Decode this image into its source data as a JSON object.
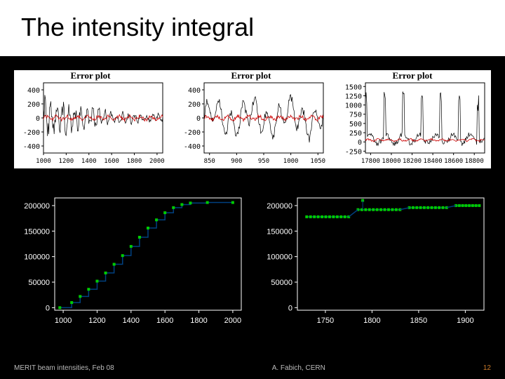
{
  "slide": {
    "title": "The intensity integral",
    "background": "#000000",
    "title_bg": "#ffffff",
    "title_color": "#000000",
    "title_fontsize": 36
  },
  "top_row": {
    "title_text": "Error plot",
    "title_fontsize": 13,
    "title_fontweight": "bold",
    "axis_font": "monospace",
    "axis_fontsize": 11,
    "series_main_color": "#000000",
    "series_overlay_color": "#cc0000",
    "background": "#ffffff",
    "panels": [
      {
        "yticks": [
          -400,
          -200,
          0,
          200,
          400
        ],
        "xticks": [
          1000,
          1200,
          1400,
          1600,
          1800,
          2000
        ],
        "xtick_labels_compressed": "1000 1200 1400 1600 1800 2000",
        "xlim": [
          1000,
          2050
        ],
        "ylim": [
          -500,
          500
        ],
        "black_series_decaying_noise": true,
        "red_series_flat_at": 0
      },
      {
        "yticks": [
          -400,
          -200,
          0,
          200,
          400
        ],
        "xticks": [
          850,
          900,
          950,
          1000,
          1050
        ],
        "xtick_labels_compressed": "850 900 950 1000 1050",
        "xlim": [
          840,
          1060
        ],
        "ylim": [
          -500,
          500
        ],
        "black_series_quasi_periodic": true,
        "red_series_flat_at": 0
      },
      {
        "yticks": [
          -250,
          0,
          250,
          500,
          750,
          1000,
          1250,
          1500
        ],
        "xticks": [
          17800,
          18000,
          18200,
          18400,
          18600,
          18800
        ],
        "xtick_labels_compressed": "17800 18000 18200 18400 18600 18800",
        "xlim": [
          17750,
          18900
        ],
        "ylim": [
          -300,
          1600
        ],
        "black_series_spikes": true,
        "red_series_flat_at": 50
      }
    ]
  },
  "bottom_row": {
    "background": "#000000",
    "axis_color": "#ffffff",
    "label_color": "#ffffff",
    "label_fontsize": 11,
    "line_color": "#004080",
    "marker_color": "#00cc00",
    "marker_size": 4,
    "panels": [
      {
        "xticks": [
          1000,
          1200,
          1400,
          1600,
          1800,
          2000
        ],
        "yticks": [
          0,
          50000,
          100000,
          150000,
          200000
        ],
        "xlim": [
          950,
          2050
        ],
        "ylim": [
          -5000,
          215000
        ],
        "type": "step_staircase",
        "step_points": [
          [
            980,
            0
          ],
          [
            1050,
            10000
          ],
          [
            1100,
            22000
          ],
          [
            1150,
            36000
          ],
          [
            1200,
            52000
          ],
          [
            1250,
            68000
          ],
          [
            1300,
            85000
          ],
          [
            1350,
            102000
          ],
          [
            1400,
            120000
          ],
          [
            1450,
            138000
          ],
          [
            1500,
            156000
          ],
          [
            1550,
            172000
          ],
          [
            1600,
            186000
          ],
          [
            1650,
            196000
          ],
          [
            1700,
            202000
          ],
          [
            1750,
            205000
          ],
          [
            1850,
            206000
          ],
          [
            2000,
            206000
          ]
        ]
      },
      {
        "xticks": [
          1750,
          1800,
          1850,
          1900
        ],
        "yticks": [
          0,
          50000,
          100000,
          150000,
          200000
        ],
        "xlim": [
          1720,
          1920
        ],
        "ylim": [
          -5000,
          215000
        ],
        "type": "grouped_points_plateau",
        "groups": [
          {
            "x_range": [
              1730,
              1775
            ],
            "y": 178000,
            "n": 12
          },
          {
            "x_range": [
              1785,
              1830
            ],
            "y": 192000,
            "n": 12,
            "outlier": [
              1790,
              210000
            ]
          },
          {
            "x_range": [
              1840,
              1880
            ],
            "y": 196000,
            "n": 11
          },
          {
            "x_range": [
              1890,
              1915
            ],
            "y": 200000,
            "n": 8
          }
        ]
      }
    ]
  },
  "footer": {
    "left": "MERIT beam intensities, Feb 08",
    "center": "A. Fabich, CERN",
    "page": "12",
    "color": "#bbbbbb",
    "page_color": "#c97a2a",
    "fontsize": 10
  }
}
